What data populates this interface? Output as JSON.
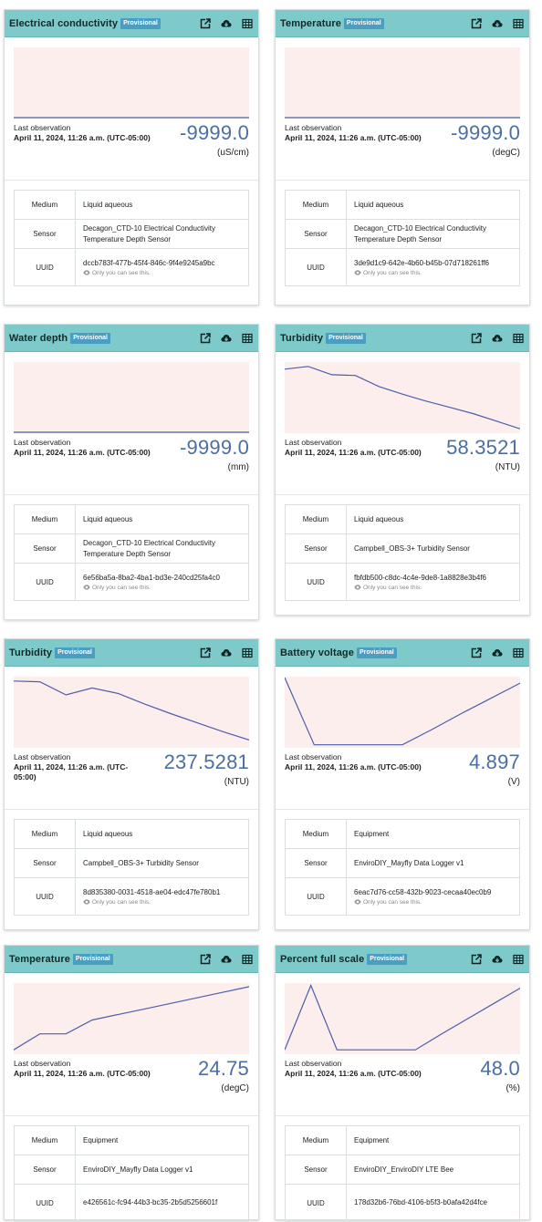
{
  "labels": {
    "badge": "Provisional",
    "last_observation": "Last observation",
    "medium": "Medium",
    "sensor": "Sensor",
    "uuid": "UUID",
    "only_you": "Only you can see this."
  },
  "icons": [
    "external-link-icon",
    "download-icon",
    "table-icon",
    "eye-icon"
  ],
  "colors": {
    "header_bg": "#7ecaca",
    "badge_bg": "#4a9ec4",
    "value_text": "#4b6ea4",
    "chart_line": "#4b5ea8",
    "chart_fill": "#fdeeee"
  },
  "cards": [
    {
      "title": "Electrical conductivity",
      "date": "April 11, 2024, 11:26 a.m. (UTC-05:00)",
      "value": "-9999.0",
      "unit": "(uS/cm)",
      "medium": "Liquid aqueous",
      "sensor": "Decagon_CTD-10 Electrical Conductivity Temperature Depth Sensor",
      "uuid": "dccb783f-477b-45f4-846c-9f4e9245a9bc",
      "show_note": true
    },
    {
      "title": "Temperature",
      "date": "April 11, 2024, 11:26 a.m. (UTC-05:00)",
      "value": "-9999.0",
      "unit": "(degC)",
      "medium": "Liquid aqueous",
      "sensor": "Decagon_CTD-10 Electrical Conductivity Temperature Depth Sensor",
      "uuid": "3de9d1c9-642e-4b60-b45b-07d718261ff6",
      "show_note": true
    },
    {
      "title": "Water depth",
      "date": "April 11, 2024, 11:26 a.m. (UTC-05:00)",
      "value": "-9999.0",
      "unit": "(mm)",
      "medium": "Liquid aqueous",
      "sensor": "Decagon_CTD-10 Electrical Conductivity Temperature Depth Sensor",
      "uuid": "6e56ba5a-8ba2-4ba1-bd3e-240cd25fa4c0",
      "show_note": true
    },
    {
      "title": "Turbidity",
      "date": "April 11, 2024, 11:26 a.m. (UTC-05:00)",
      "value": "58.3521",
      "unit": "(NTU)",
      "medium": "Liquid aqueous",
      "sensor": "Campbell_OBS-3+ Turbidity Sensor",
      "uuid": "fbfdb500-c8dc-4c4e-9de8-1a8828e3b4f6",
      "show_note": true
    },
    {
      "title": "Turbidity",
      "date": "April 11, 2024, 11:26 a.m. (UTC-05:00)",
      "value": "237.5281",
      "unit": "(NTU)",
      "medium": "Liquid aqueous",
      "sensor": "Campbell_OBS-3+ Turbidity Sensor",
      "uuid": "8d835380-0031-4518-ae04-edc47fe780b1",
      "show_note": true
    },
    {
      "title": "Battery voltage",
      "date": "April 11, 2024, 11:26 a.m. (UTC-05:00)",
      "value": "4.897",
      "unit": "(V)",
      "medium": "Equipment",
      "sensor": "EnviroDIY_Mayfly Data Logger v1",
      "uuid": "6eac7d76-cc58-432b-9023-cecaa40ec0b9",
      "show_note": true
    },
    {
      "title": "Temperature",
      "date": "April 11, 2024, 11:26 a.m. (UTC-05:00)",
      "value": "24.75",
      "unit": "(degC)",
      "medium": "Equipment",
      "sensor": "EnviroDIY_Mayfly Data Logger v1",
      "uuid": "e426561c-fc94-44b3-bc35-2b5d5256601f",
      "show_note": false
    },
    {
      "title": "Percent full scale",
      "date": "April 11, 2024, 11:26 a.m. (UTC-05:00)",
      "value": "48.0",
      "unit": "(%)",
      "medium": "Equipment",
      "sensor": "EnviroDIY_EnviroDIY LTE Bee",
      "uuid": "178d32b6-76bd-4106-b5f3-b0afa42d4fce",
      "show_note": false
    }
  ],
  "sparkline_shapes": [
    [
      0.0,
      0.0,
      0.0,
      0.0,
      0.0,
      0.0,
      0.0,
      0.0,
      0.0,
      0.0,
      0.0
    ],
    [
      0.0,
      0.0,
      0.0,
      0.0,
      0.0,
      0.0,
      0.0,
      0.0,
      0.0,
      0.0,
      0.0
    ],
    [
      0.0,
      0.0,
      0.0,
      0.0,
      0.0,
      0.0,
      0.0,
      0.0,
      0.0,
      0.0,
      0.0
    ],
    [
      0.91,
      0.95,
      0.83,
      0.82,
      0.66,
      0.55,
      0.45,
      0.36,
      0.27,
      0.16,
      0.05
    ],
    [
      0.95,
      0.94,
      0.75,
      0.85,
      0.77,
      0.62,
      0.48,
      0.35,
      0.22,
      0.1
    ],
    [
      1.0,
      0.03,
      0.03,
      0.03,
      0.03,
      0.25,
      0.48,
      0.7,
      0.92
    ],
    [
      0.05,
      0.28,
      0.28,
      0.48,
      0.56,
      0.64,
      0.72,
      0.8,
      0.88,
      0.96
    ],
    [
      0.05,
      0.98,
      0.05,
      0.05,
      0.05,
      0.05,
      0.28,
      0.5,
      0.72,
      0.94
    ]
  ]
}
